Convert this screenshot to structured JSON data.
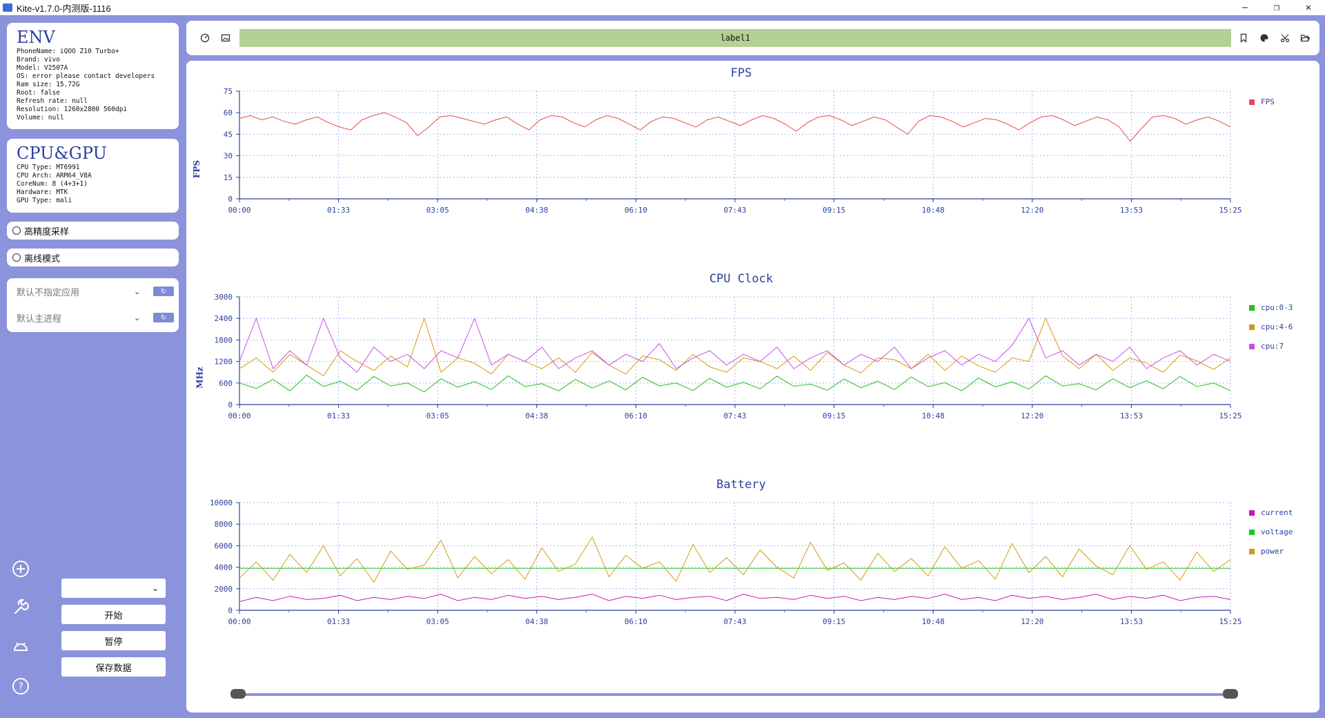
{
  "window": {
    "title": "Kite-v1.7.0-内测版-1116",
    "controls": {
      "minimize": "—",
      "maximize": "❐",
      "close": "✕"
    }
  },
  "env": {
    "title": "ENV",
    "lines": [
      "PhoneName: iQOO Z10 Turbo+",
      "Brand: vivo",
      "Model: V2507A",
      "OS: error please contact developers",
      "Ram size: 15.72G",
      "Root: false",
      "Refresh rate: null",
      "Resolution: 1260x2800 560dpi",
      "Volume: null"
    ]
  },
  "cpugpu": {
    "title": "CPU&GPU",
    "lines": [
      "CPU Type: MT6991",
      "CPU Arch: ARM64_V8A",
      "CoreNum: 8 (4+3+1)",
      "Hardware: MTK",
      "GPU Type: mali"
    ]
  },
  "options": {
    "high_precision": "高精度采样",
    "offline_mode": "离线模式"
  },
  "selectors": {
    "app": "默认不指定应用",
    "process": "默认主进程"
  },
  "controls": {
    "dropdown_value": "",
    "start": "开始",
    "pause": "暂停",
    "save": "保存数据"
  },
  "toolbar": {
    "label": "label1"
  },
  "time_ticks": [
    "00:00",
    "01:33",
    "03:05",
    "04:38",
    "06:10",
    "07:43",
    "09:15",
    "10:48",
    "12:20",
    "13:53",
    "15:25"
  ],
  "colors": {
    "fps": "#e8455a",
    "cpu0_3": "#1ec01e",
    "cpu4_6": "#d39a10",
    "cpu7": "#c94ee8",
    "current": "#cf14b4",
    "voltage": "#21c42a",
    "power": "#d39a10",
    "accent": "#2b3f9e"
  },
  "chart_data": [
    {
      "type": "line",
      "title": "FPS",
      "ylabel": "FPS",
      "ylim": [
        0,
        75
      ],
      "yticks": [
        "0",
        "15",
        "30",
        "45",
        "60",
        "75"
      ],
      "series": [
        {
          "name": "FPS",
          "color": "#e8455a",
          "values": [
            56,
            58,
            55,
            57,
            54,
            52,
            55,
            57,
            53,
            50,
            48,
            55,
            58,
            60,
            57,
            53,
            44,
            50,
            57,
            58,
            56,
            54,
            52,
            55,
            57,
            52,
            48,
            55,
            58,
            57,
            53,
            50,
            55,
            58,
            56,
            52,
            48,
            54,
            57,
            56,
            53,
            50,
            55,
            57,
            54,
            51,
            55,
            58,
            56,
            52,
            47,
            53,
            57,
            58,
            55,
            51,
            54,
            57,
            55,
            50,
            45,
            54,
            58,
            57,
            54,
            50,
            53,
            56,
            55,
            52,
            48,
            53,
            57,
            58,
            55,
            51,
            54,
            57,
            55,
            50,
            40,
            49,
            57,
            58,
            56,
            52,
            55,
            57,
            54,
            50
          ]
        }
      ]
    },
    {
      "type": "line",
      "title": "CPU Clock",
      "ylabel": "MHz",
      "ylim": [
        0,
        3000
      ],
      "yticks": [
        "0",
        "600",
        "1200",
        "1800",
        "2400",
        "3000"
      ],
      "series": [
        {
          "name": "cpu:0-3",
          "color": "#1ec01e",
          "values": [
            600,
            450,
            700,
            380,
            820,
            500,
            650,
            400,
            780,
            520,
            600,
            350,
            720,
            480,
            640,
            420,
            800,
            500,
            580,
            380,
            700,
            460,
            660,
            410,
            760,
            520,
            600,
            390,
            730,
            480,
            620,
            440,
            790,
            510,
            570,
            400,
            710,
            470,
            650,
            420,
            770,
            500,
            610,
            380,
            740,
            490,
            630,
            430,
            800,
            520,
            580,
            410,
            720,
            470,
            660,
            440,
            780,
            500,
            600,
            390
          ]
        },
        {
          "name": "cpu:4-6",
          "color": "#d39a10",
          "values": [
            1000,
            1300,
            900,
            1400,
            1100,
            800,
            1500,
            1200,
            950,
            1350,
            1050,
            2400,
            900,
            1300,
            1150,
            850,
            1400,
            1200,
            1000,
            1300,
            900,
            1450,
            1100,
            850,
            1350,
            1250,
            950,
            1400,
            1050,
            900,
            1300,
            1200,
            1000,
            1350,
            950,
            1450,
            1100,
            880,
            1300,
            1250,
            1000,
            1400,
            950,
            1350,
            1080,
            900,
            1300,
            1200,
            2400,
            1350,
            1000,
            1400,
            950,
            1300,
            1150,
            900,
            1380,
            1220,
            980,
            1300
          ]
        },
        {
          "name": "cpu:7",
          "color": "#c94ee8",
          "values": [
            1200,
            2400,
            1000,
            1500,
            1100,
            2400,
            1300,
            900,
            1600,
            1200,
            1400,
            1000,
            1500,
            1300,
            2400,
            1100,
            1400,
            1200,
            1600,
            1000,
            1300,
            1500,
            1100,
            1400,
            1200,
            1700,
            1000,
            1300,
            1500,
            1100,
            1400,
            1200,
            1600,
            1000,
            1300,
            1500,
            1100,
            1400,
            1200,
            1600,
            1000,
            1300,
            1500,
            1100,
            1400,
            1200,
            1650,
            2400,
            1300,
            1500,
            1100,
            1400,
            1200,
            1600,
            1000,
            1300,
            1500,
            1100,
            1400,
            1200
          ]
        }
      ]
    },
    {
      "type": "line",
      "title": "Battery",
      "ylabel": "",
      "ylim": [
        0,
        10000
      ],
      "yticks": [
        "0",
        "2000",
        "4000",
        "6000",
        "8000",
        "10000"
      ],
      "series": [
        {
          "name": "current",
          "color": "#cf14b4",
          "values": [
            800,
            1200,
            900,
            1300,
            1000,
            1100,
            1400,
            900,
            1200,
            1000,
            1300,
            1100,
            1500,
            900,
            1200,
            1000,
            1400,
            1100,
            1300,
            1000,
            1200,
            1500,
            900,
            1300,
            1100,
            1400,
            1000,
            1200,
            1300,
            900,
            1500,
            1100,
            1200,
            1000,
            1400,
            1100,
            1300,
            900,
            1200,
            1000,
            1300,
            1100,
            1500,
            1000,
            1200,
            900,
            1400,
            1100,
            1300,
            1000,
            1200,
            1500,
            1000,
            1300,
            1100,
            1400,
            900,
            1200,
            1300,
            1000
          ]
        },
        {
          "name": "voltage",
          "color": "#21c42a",
          "values": [
            3900,
            3900,
            3900,
            3900,
            3900,
            3900,
            3900,
            3900,
            3900,
            3900,
            3900,
            3900,
            3900,
            3900,
            3900,
            3900,
            3900,
            3900,
            3900,
            3900
          ]
        },
        {
          "name": "power",
          "color": "#d39a10",
          "values": [
            3000,
            4500,
            2800,
            5200,
            3500,
            6000,
            3200,
            4800,
            2600,
            5500,
            3800,
            4200,
            6500,
            3000,
            5000,
            3400,
            4700,
            2900,
            5800,
            3600,
            4300,
            6800,
            3100,
            5100,
            3900,
            4500,
            2700,
            6100,
            3500,
            4900,
            3300,
            5600,
            4000,
            3000,
            6300,
            3700,
            4400,
            2800,
            5300,
            3600,
            4800,
            3200,
            5900,
            3900,
            4600,
            2900,
            6200,
            3500,
            5000,
            3100,
            5700,
            4100,
            3300,
            6000,
            3800,
            4500,
            2800,
            5400,
            3600,
            4700
          ]
        }
      ]
    }
  ]
}
